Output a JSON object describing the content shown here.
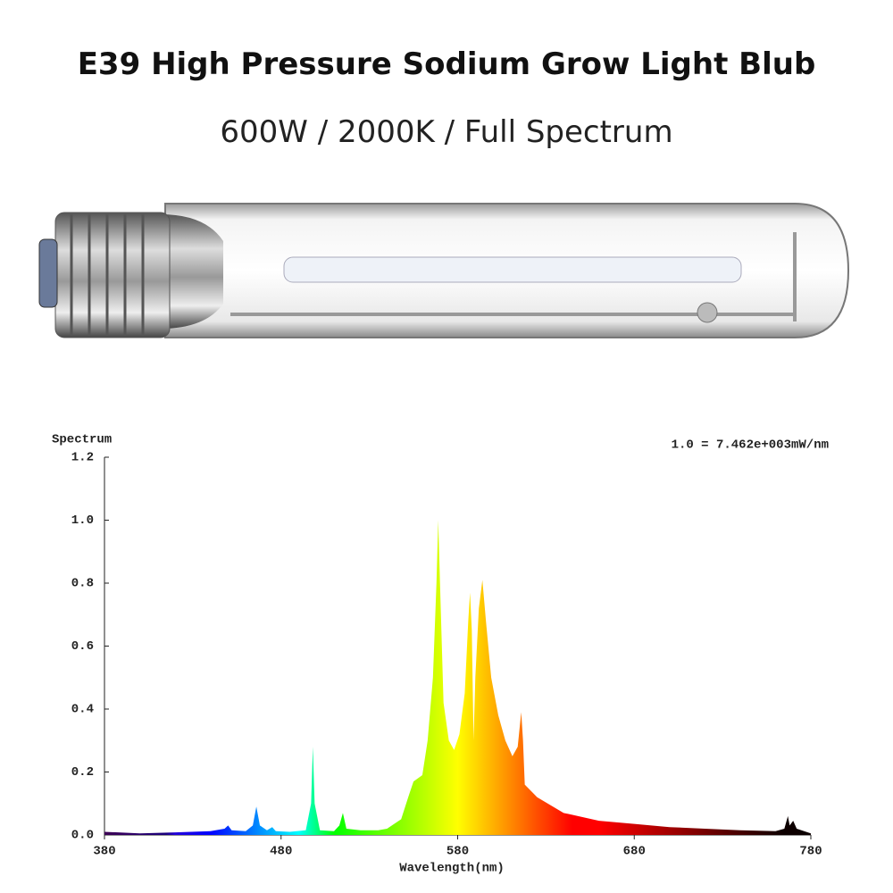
{
  "header": {
    "title": "E39 High Pressure Sodium Grow Light Blub",
    "subtitle": "600W / 2000K / Full Spectrum"
  },
  "chart_data": {
    "type": "area",
    "y_label": "Spectrum",
    "annotation": "1.0 = 7.462e+003mW/nm",
    "x_label": "Wavelength(nm)",
    "x": [
      380,
      400,
      420,
      440,
      448,
      450,
      452,
      460,
      464,
      466,
      468,
      472,
      475,
      477,
      485,
      494,
      497,
      498,
      499,
      502,
      510,
      513,
      515,
      517,
      525,
      535,
      540,
      548,
      552,
      555,
      560,
      563,
      566,
      568,
      569,
      570,
      572,
      575,
      578,
      581,
      584,
      586,
      587,
      588,
      589,
      590,
      592,
      594,
      596,
      599,
      603,
      607,
      611,
      614,
      616,
      617,
      618,
      625,
      640,
      660,
      680,
      700,
      720,
      740,
      760,
      765,
      767,
      768,
      770,
      772,
      780
    ],
    "values": [
      0.01,
      0.005,
      0.008,
      0.012,
      0.02,
      0.03,
      0.015,
      0.012,
      0.03,
      0.09,
      0.03,
      0.015,
      0.025,
      0.012,
      0.01,
      0.015,
      0.1,
      0.28,
      0.1,
      0.015,
      0.012,
      0.03,
      0.07,
      0.02,
      0.015,
      0.015,
      0.02,
      0.05,
      0.12,
      0.17,
      0.19,
      0.3,
      0.5,
      0.8,
      1.0,
      0.8,
      0.42,
      0.3,
      0.27,
      0.32,
      0.45,
      0.68,
      0.77,
      0.65,
      0.3,
      0.5,
      0.72,
      0.81,
      0.68,
      0.5,
      0.38,
      0.3,
      0.25,
      0.28,
      0.39,
      0.3,
      0.16,
      0.12,
      0.07,
      0.045,
      0.035,
      0.025,
      0.02,
      0.015,
      0.012,
      0.02,
      0.06,
      0.03,
      0.045,
      0.02,
      0.005
    ],
    "xlim": [
      380,
      780
    ],
    "xticks": [
      380,
      480,
      580,
      680,
      780
    ],
    "ylim": [
      0,
      1.2
    ],
    "yticks": [
      {
        "value": 0,
        "label": "0.0"
      },
      0.2,
      0.4,
      0.6,
      0.8,
      {
        "value": 1,
        "label": "1.0"
      },
      1.2
    ]
  }
}
